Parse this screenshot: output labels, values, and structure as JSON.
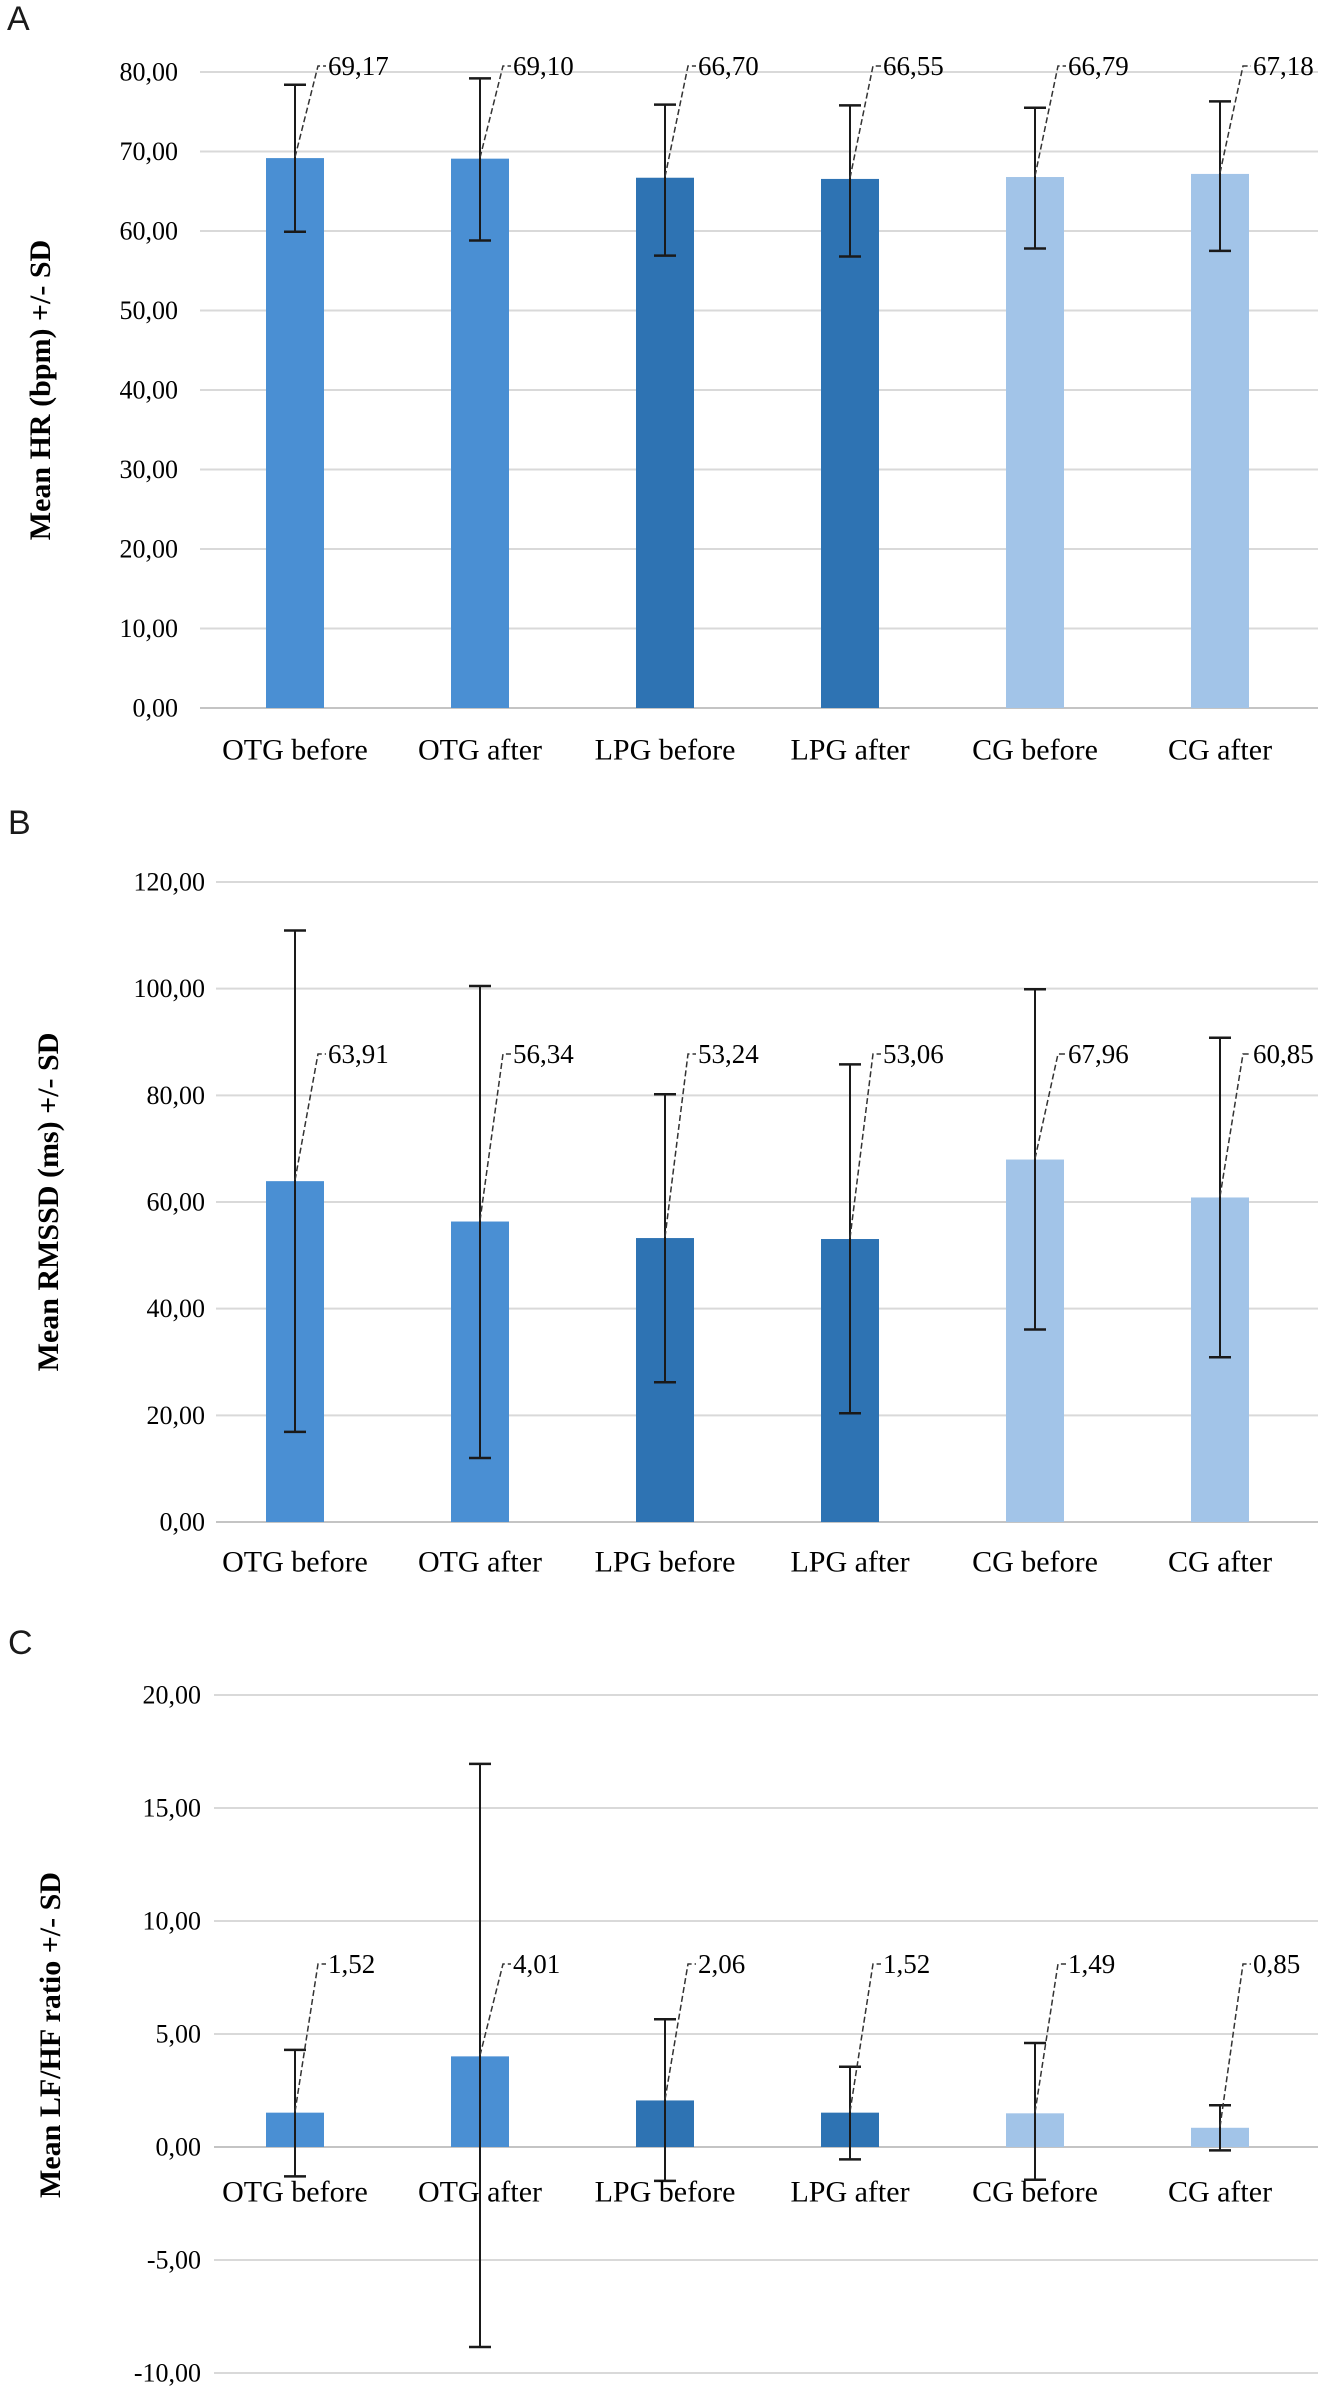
{
  "figure": {
    "background": "#ffffff",
    "panel_letters": [
      "A",
      "B",
      "C"
    ]
  },
  "colors": {
    "otg_bar": "#4a8fd3",
    "lpg_bar": "#2e73b3",
    "cg_bar": "#a2c4e8",
    "gridline": "#d9d9d9",
    "zero_line": "#c4c4c4",
    "error_bar": "#1a1a1a",
    "leader_line": "#333333",
    "text": "#000000"
  },
  "chart_data": [
    {
      "type": "bar",
      "panel_label": "A",
      "title": "",
      "xlabel": "",
      "ylabel": "Mean HR (bpm) +/- SD",
      "categories": [
        "OTG before",
        "OTG after",
        "LPG before",
        "LPG after",
        "CG before",
        "CG after"
      ],
      "values": [
        69.17,
        69.1,
        66.7,
        66.55,
        66.79,
        67.18
      ],
      "value_labels": [
        "69,17",
        "69,10",
        "66,70",
        "66,55",
        "66,79",
        "67,18"
      ],
      "error_low": [
        59.9,
        58.8,
        56.9,
        56.8,
        57.8,
        57.5
      ],
      "error_high": [
        78.4,
        79.2,
        75.9,
        75.8,
        75.5,
        76.3
      ],
      "ylim": [
        0,
        80
      ],
      "ytick_values": [
        80,
        70,
        60,
        50,
        40,
        30,
        20,
        10,
        0
      ],
      "ytick_labels": [
        "80,00",
        "70,00",
        "60,00",
        "50,00",
        "40,00",
        "30,00",
        "20,00",
        "10,00",
        "0,00"
      ],
      "bar_colors": [
        "#4a8fd3",
        "#4a8fd3",
        "#2e73b3",
        "#2e73b3",
        "#a2c4e8",
        "#a2c4e8"
      ],
      "grid": "horizontal",
      "legend": "none"
    },
    {
      "type": "bar",
      "panel_label": "B",
      "title": "",
      "xlabel": "",
      "ylabel": "Mean RMSSD (ms) +/- SD",
      "categories": [
        "OTG before",
        "OTG after",
        "LPG before",
        "LPG after",
        "CG before",
        "CG after"
      ],
      "values": [
        63.91,
        56.34,
        53.24,
        53.06,
        67.96,
        60.85
      ],
      "value_labels": [
        "63,91",
        "56,34",
        "53,24",
        "53,06",
        "67,96",
        "60,85"
      ],
      "error_low": [
        16.9,
        12.0,
        26.2,
        20.4,
        36.1,
        30.9
      ],
      "error_high": [
        110.9,
        100.5,
        80.2,
        85.8,
        99.9,
        90.8
      ],
      "ylim": [
        0,
        120
      ],
      "ytick_values": [
        120,
        100,
        80,
        60,
        40,
        20,
        0
      ],
      "ytick_labels": [
        "120,00",
        "100,00",
        "80,00",
        "60,00",
        "40,00",
        "20,00",
        "0,00"
      ],
      "bar_colors": [
        "#4a8fd3",
        "#4a8fd3",
        "#2e73b3",
        "#2e73b3",
        "#a2c4e8",
        "#a2c4e8"
      ],
      "grid": "horizontal",
      "legend": "none"
    },
    {
      "type": "bar",
      "panel_label": "C",
      "title": "",
      "xlabel": "",
      "ylabel": "Mean LF/HF ratio +/- SD",
      "categories": [
        "OTG before",
        "OTG after",
        "LPG before",
        "LPG after",
        "CG before",
        "CG after"
      ],
      "values": [
        1.52,
        4.01,
        2.06,
        1.52,
        1.49,
        0.85
      ],
      "value_labels": [
        "1,52",
        "4,01",
        "2,06",
        "1,52",
        "1,49",
        "0,85"
      ],
      "error_low": [
        -1.3,
        -8.85,
        -1.5,
        -0.55,
        -1.45,
        -0.15
      ],
      "error_high": [
        4.3,
        16.95,
        5.65,
        3.55,
        4.6,
        1.85
      ],
      "ylim": [
        -10,
        20
      ],
      "ytick_values": [
        20,
        15,
        10,
        5,
        0,
        -5,
        -10
      ],
      "ytick_labels": [
        "20,00",
        "15,00",
        "10,00",
        "5,00",
        "0,00",
        "-5,00",
        "-10,00"
      ],
      "bar_colors": [
        "#4a8fd3",
        "#4a8fd3",
        "#2e73b3",
        "#2e73b3",
        "#a2c4e8",
        "#a2c4e8"
      ],
      "grid": "horizontal",
      "legend": "none"
    }
  ]
}
